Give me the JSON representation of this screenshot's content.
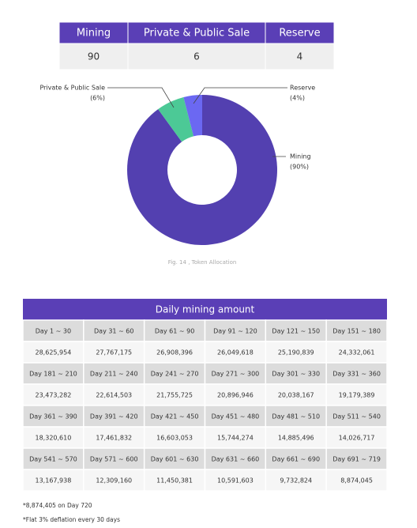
{
  "allocation_table": {
    "headers": [
      "Mining",
      "Private & Public Sale",
      "Reserve"
    ],
    "values": [
      90,
      6,
      4
    ]
  },
  "donut_labels": [
    {
      "name": "Mining",
      "pct": "(90%)"
    },
    {
      "name": "Private & Public Sale",
      "pct": "(6%)"
    },
    {
      "name": "Reserve",
      "pct": "(4%)"
    }
  ],
  "caption": "Fig. 14 , Token Allocation",
  "daily_table": {
    "title": "Daily mining amount",
    "rows": [
      [
        "Day 1 ~ 30",
        "Day 31 ~ 60",
        "Day 61 ~ 90",
        "Day 91 ~ 120",
        "Day 121 ~ 150",
        "Day 151 ~ 180"
      ],
      [
        "28,625,954",
        "27,767,175",
        "26,908,396",
        "26,049,618",
        "25,190,839",
        "24,332,061"
      ],
      [
        "Day 181 ~ 210",
        "Day 211 ~ 240",
        "Day 241 ~ 270",
        "Day 271 ~ 300",
        "Day 301 ~ 330",
        "Day 331 ~ 360"
      ],
      [
        "23,473,282",
        "22,614,503",
        "21,755,725",
        "20,896,946",
        "20,038,167",
        "19,179,389"
      ],
      [
        "Day 361 ~ 390",
        "Day 391 ~ 420",
        "Day 421 ~ 450",
        "Day 451 ~ 480",
        "Day 481 ~ 510",
        "Day 511 ~ 540"
      ],
      [
        "18,320,610",
        "17,461,832",
        "16,603,053",
        "15,744,274",
        "14,885,496",
        "14,026,717"
      ],
      [
        "Day 541 ~ 570",
        "Day 571 ~ 600",
        "Day 601 ~ 630",
        "Day 631 ~ 660",
        "Day 661 ~ 690",
        "Day 691 ~ 719"
      ],
      [
        "13,167,938",
        "12,309,160",
        "11,450,381",
        "10,591,603",
        "9,732,824",
        "8,874,045"
      ]
    ]
  },
  "notes": [
    "*8,874,405 on Day 720",
    "*Flat 3% deflation every 30 days"
  ]
}
